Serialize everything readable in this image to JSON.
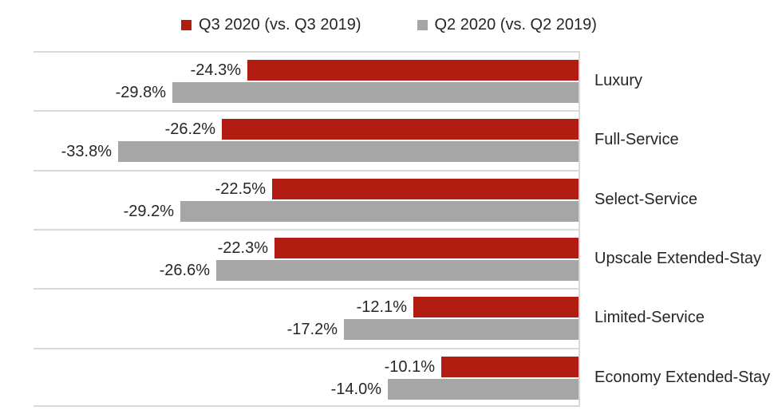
{
  "chart_data": {
    "type": "bar",
    "orientation": "horizontal",
    "title": "",
    "categories": [
      "Luxury",
      "Full-Service",
      "Select-Service",
      "Upscale Extended-Stay",
      "Limited-Service",
      "Economy Extended-Stay"
    ],
    "series": [
      {
        "name": "Q3 2020 (vs. Q3 2019)",
        "color": "#B21D12",
        "values": [
          -24.3,
          -26.2,
          -22.5,
          -22.3,
          -12.1,
          -10.1
        ],
        "labels": [
          "-24.3%",
          "-26.2%",
          "-22.5%",
          "-22.3%",
          "-12.1%",
          "-10.1%"
        ]
      },
      {
        "name": "Q2 2020 (vs. Q2 2019)",
        "color": "#A6A6A6",
        "values": [
          -29.8,
          -33.8,
          -29.2,
          -26.6,
          -17.2,
          -14.0
        ],
        "labels": [
          "-29.8%",
          "-33.8%",
          "-29.2%",
          "-26.6%",
          "-17.2%",
          "-14.0%"
        ]
      }
    ],
    "value_axis": {
      "min": -40,
      "max": 0,
      "tick_labels_visible": false
    },
    "category_axis": {
      "position": "right"
    },
    "legend": {
      "position": "top"
    },
    "grid": {
      "horizontal": true,
      "color": "#D9D9D9"
    },
    "data_labels": {
      "position": "outside-end",
      "color": "#262626"
    },
    "background_color": "#FFFFFF"
  }
}
